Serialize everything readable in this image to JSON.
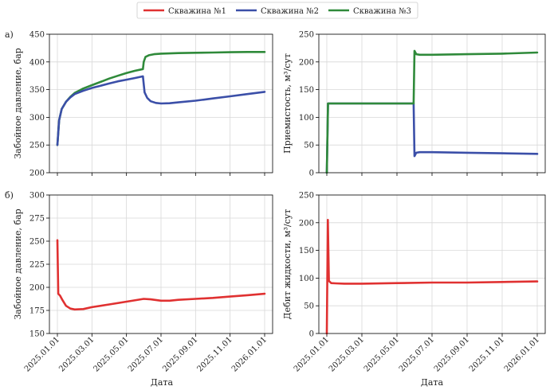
{
  "legend": {
    "items": [
      {
        "label": "Скважина №1",
        "color": "#e03131"
      },
      {
        "label": "Скважина №2",
        "color": "#3b4fa8"
      },
      {
        "label": "Скважина №3",
        "color": "#2f8a3a"
      }
    ]
  },
  "xlabel": "Дата",
  "chart_data": [
    {
      "type": "line",
      "panel_label": "а)",
      "ylabel": "Забойное давление, бар",
      "ylim": [
        200,
        450
      ],
      "yticks": [
        200,
        250,
        300,
        350,
        400,
        450
      ],
      "xlim": [
        0,
        12
      ],
      "xticks": [],
      "grid": true,
      "series": [
        {
          "name": "Скважина №3",
          "color": "#2f8a3a",
          "x": [
            0,
            0.1,
            0.25,
            0.5,
            0.75,
            1.0,
            1.5,
            2.0,
            2.5,
            3.0,
            3.5,
            4.0,
            4.5,
            4.95,
            5.0,
            5.1,
            5.3,
            5.6,
            6,
            7,
            8,
            9,
            10,
            11,
            12
          ],
          "y": [
            250,
            295,
            315,
            328,
            337,
            344,
            352,
            358,
            364,
            370,
            375,
            380,
            384,
            387,
            400,
            409,
            412,
            414,
            415,
            416,
            416.5,
            417,
            417.5,
            418,
            418
          ]
        },
        {
          "name": "Скважина №2",
          "color": "#3b4fa8",
          "x": [
            0,
            0.1,
            0.25,
            0.5,
            0.75,
            1.0,
            1.5,
            2.0,
            2.5,
            3.0,
            3.5,
            4.0,
            4.5,
            4.95,
            5.0,
            5.05,
            5.2,
            5.4,
            5.7,
            6.0,
            6.5,
            7,
            8,
            9,
            10,
            11,
            12
          ],
          "y": [
            250,
            295,
            315,
            328,
            336,
            342,
            348,
            353,
            357,
            361,
            365,
            368,
            371,
            374,
            360,
            345,
            335,
            329,
            326,
            325,
            325.5,
            327,
            330,
            334,
            338,
            342,
            346
          ]
        }
      ]
    },
    {
      "type": "line",
      "panel_label": "",
      "ylabel": "Приемистость, м³/сут",
      "ylim": [
        0,
        250
      ],
      "yticks": [
        0,
        50,
        100,
        150,
        200,
        250
      ],
      "xlim": [
        0,
        12
      ],
      "xticks": [],
      "grid": true,
      "series": [
        {
          "name": "Скважина №2",
          "color": "#3b4fa8",
          "x": [
            0,
            0.07,
            4.95,
            5.0,
            5.1,
            5.3,
            6,
            8,
            10,
            12
          ],
          "y": [
            0,
            125,
            125,
            30,
            36,
            37,
            37,
            36,
            35,
            34
          ]
        },
        {
          "name": "Скважина №3",
          "color": "#2f8a3a",
          "x": [
            0,
            0.07,
            4.95,
            5.0,
            5.1,
            5.3,
            6,
            8,
            10,
            12
          ],
          "y": [
            0,
            125,
            125,
            220,
            214,
            213,
            213,
            214,
            215,
            217
          ]
        }
      ]
    },
    {
      "type": "line",
      "panel_label": "б)",
      "ylabel": "Забойное давление, бар",
      "ylim": [
        150,
        300
      ],
      "yticks": [
        150,
        175,
        200,
        225,
        250,
        275,
        300
      ],
      "xlim": [
        0,
        12
      ],
      "xticks": [
        "2025.01.01",
        "2025.03.01",
        "2025.05.01",
        "2025.07.01",
        "2025.09.01",
        "2025.11.01",
        "2026.01.01"
      ],
      "xtick_positions": [
        0,
        2,
        4,
        6,
        8,
        10,
        12
      ],
      "grid": true,
      "series": [
        {
          "name": "Скважина №1",
          "color": "#e03131",
          "x": [
            0,
            0.05,
            0.15,
            0.3,
            0.5,
            0.75,
            1.0,
            1.5,
            2.0,
            3.0,
            4.0,
            5.0,
            5.4,
            6.0,
            6.5,
            7,
            8,
            9,
            10,
            11,
            12
          ],
          "y": [
            251,
            193,
            191,
            186,
            180,
            177,
            176,
            176.5,
            178.5,
            181.5,
            184.5,
            187.5,
            187,
            185.5,
            185.5,
            186.5,
            187.5,
            188.5,
            190,
            191.5,
            193
          ]
        }
      ]
    },
    {
      "type": "line",
      "panel_label": "",
      "ylabel": "Дебит жидкости, м³/сут",
      "ylim": [
        0,
        250
      ],
      "yticks": [
        0,
        50,
        100,
        150,
        200,
        250
      ],
      "xlim": [
        0,
        12
      ],
      "xticks": [
        "2025.01.01",
        "2025.03.01",
        "2025.05.01",
        "2025.07.01",
        "2025.09.01",
        "2025.11.01",
        "2026.01.01"
      ],
      "xtick_positions": [
        0,
        2,
        4,
        6,
        8,
        10,
        12
      ],
      "grid": true,
      "series": [
        {
          "name": "Скважина №1",
          "color": "#e03131",
          "x": [
            0,
            0.06,
            0.12,
            0.25,
            0.5,
            1,
            2,
            4,
            6,
            8,
            10,
            12
          ],
          "y": [
            0,
            205,
            95,
            91,
            90.5,
            90,
            90,
            91,
            92,
            92,
            93,
            94
          ]
        }
      ]
    }
  ]
}
